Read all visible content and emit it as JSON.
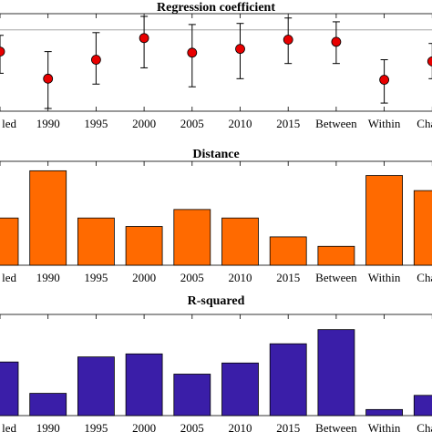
{
  "chart_data": [
    {
      "type": "scatter",
      "title": "Regression coefficient",
      "categories": [
        "Pooled",
        "1990",
        "1995",
        "2000",
        "2005",
        "2010",
        "2015",
        "Between",
        "Within",
        "Change"
      ],
      "tick_labels_visible": [
        "led",
        "1990",
        "1995",
        "2000",
        "2005",
        "2010",
        "2015",
        "Between",
        "Within",
        "Cha"
      ],
      "values": [
        0.6,
        0.1,
        0.45,
        0.85,
        0.58,
        0.65,
        0.82,
        0.78,
        0.08,
        0.42
      ],
      "error_low": [
        0.2,
        -0.45,
        0.0,
        0.3,
        -0.05,
        0.1,
        0.38,
        0.38,
        -0.35,
        0.1
      ],
      "error_high": [
        0.9,
        0.6,
        0.95,
        1.25,
        1.1,
        1.12,
        1.22,
        1.15,
        0.45,
        0.75
      ],
      "reference_line": 1.0,
      "ylim": [
        -0.5,
        1.3
      ],
      "marker_color": "#e80000",
      "grid": false
    },
    {
      "type": "bar",
      "title": "Distance",
      "categories": [
        "Pooled",
        "1990",
        "1995",
        "2000",
        "2005",
        "2010",
        "2015",
        "Between",
        "Within",
        "Change"
      ],
      "tick_labels_visible": [
        "led",
        "1990",
        "1995",
        "2000",
        "2005",
        "2010",
        "2015",
        "Between",
        "Within",
        "Cha"
      ],
      "values": [
        0.5,
        1.0,
        0.5,
        0.41,
        0.59,
        0.5,
        0.3,
        0.2,
        0.95,
        0.79
      ],
      "ylim": [
        0,
        1.1
      ],
      "bar_color": "#ff6a00",
      "grid": false
    },
    {
      "type": "bar",
      "title": "R-squared",
      "categories": [
        "Pooled",
        "1990",
        "1995",
        "2000",
        "2005",
        "2010",
        "2015",
        "Between",
        "Within",
        "Change"
      ],
      "tick_labels_visible": [
        "led",
        "1990",
        "1995",
        "2000",
        "2005",
        "2010",
        "2015",
        "Between",
        "Within",
        "Cha"
      ],
      "values": [
        0.53,
        0.22,
        0.58,
        0.61,
        0.41,
        0.52,
        0.71,
        0.85,
        0.06,
        0.2
      ],
      "ylim": [
        0,
        1.0
      ],
      "bar_color": "#3a1ea8",
      "grid": false
    }
  ]
}
